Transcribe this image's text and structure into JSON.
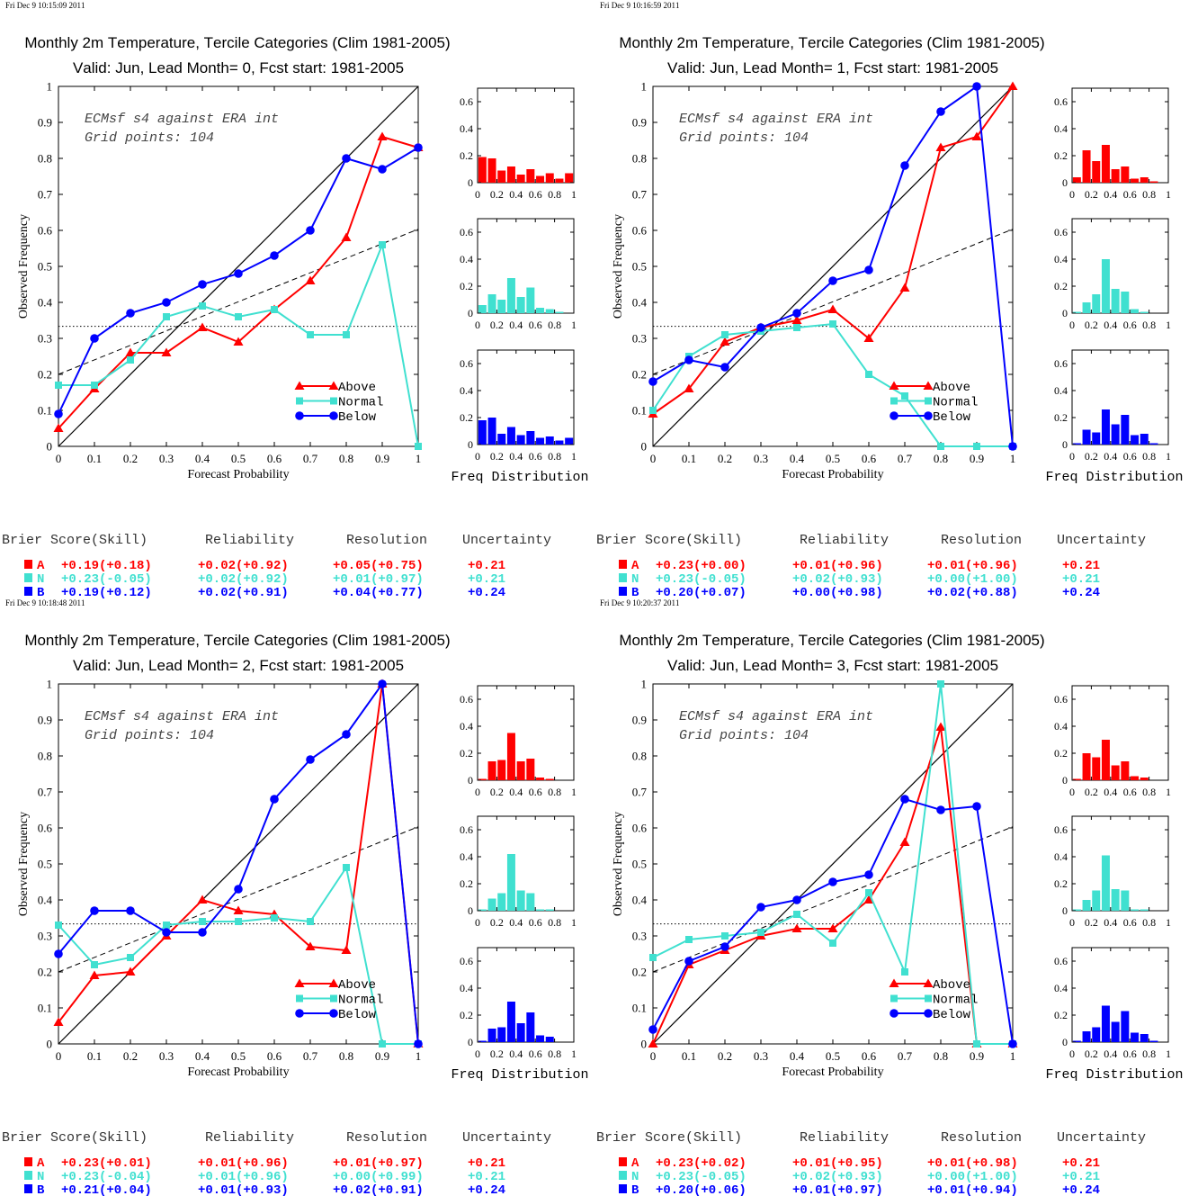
{
  "colors": {
    "above": "#ff0000",
    "normal": "#40e0d0",
    "below": "#0000ff",
    "axis": "#000000"
  },
  "common": {
    "title": "Monthly 2m Temperature, Tercile Categories (Clim 1981-2005)",
    "xlabel": "Forecast Probability",
    "ylabel": "Observed Frequency",
    "model_line1": "ECMsf s4 against ERA int",
    "model_line2": "Grid points:  104",
    "hist_label": "Freq Distribution",
    "legend": [
      "Above",
      "Normal",
      "Below"
    ],
    "x_ticks": [
      "0",
      "0.1",
      "0.2",
      "0.3",
      "0.4",
      "0.5",
      "0.6",
      "0.7",
      "0.8",
      "0.9",
      "1"
    ],
    "y_ticks": [
      "0",
      "0.1",
      "0.2",
      "0.3",
      "0.4",
      "0.5",
      "0.6",
      "0.7",
      "0.8",
      "0.9",
      "1"
    ],
    "hist_x_ticks": [
      "0",
      "0.2",
      "0.4",
      "0.6",
      "0.8",
      "1"
    ],
    "hist_y_ticks": [
      "0",
      "0.2",
      "0.4",
      "0.6"
    ],
    "score_headers": [
      "Brier Score(Skill)",
      "Reliability",
      "Resolution",
      "Uncertainty"
    ],
    "score_letters": [
      "A",
      "N",
      "B"
    ]
  },
  "chart_data": [
    {
      "type": "line",
      "timestamp": "Fri Dec  9 10:15:09 2011",
      "subtitle": "Valid: Jun, Lead Month= 0, Fcst start: 1981-2005",
      "xlim": [
        0,
        1
      ],
      "ylim": [
        0,
        1
      ],
      "series": [
        {
          "name": "Above",
          "x": [
            0,
            0.1,
            0.2,
            0.3,
            0.4,
            0.5,
            0.6,
            0.7,
            0.8,
            0.9,
            1
          ],
          "y": [
            0.05,
            0.16,
            0.26,
            0.26,
            0.33,
            0.29,
            0.38,
            0.46,
            0.58,
            0.86,
            0.83
          ]
        },
        {
          "name": "Normal",
          "x": [
            0,
            0.1,
            0.2,
            0.3,
            0.4,
            0.5,
            0.6,
            0.7,
            0.8,
            0.9,
            1
          ],
          "y": [
            0.17,
            0.17,
            0.24,
            0.36,
            0.39,
            0.36,
            0.38,
            0.31,
            0.31,
            0.56,
            0
          ]
        },
        {
          "name": "Below",
          "x": [
            0,
            0.1,
            0.2,
            0.3,
            0.4,
            0.5,
            0.6,
            0.7,
            0.8,
            0.9,
            1
          ],
          "y": [
            0.09,
            0.3,
            0.37,
            0.4,
            0.45,
            0.48,
            0.53,
            0.6,
            0.8,
            0.77,
            0.83
          ]
        }
      ],
      "hist": {
        "above": [
          0.19,
          0.18,
          0.09,
          0.12,
          0.06,
          0.1,
          0.05,
          0.07,
          0.03,
          0.07
        ],
        "normal": [
          0.06,
          0.14,
          0.1,
          0.26,
          0.12,
          0.19,
          0.04,
          0.03,
          0.01,
          0
        ],
        "below": [
          0.18,
          0.2,
          0.08,
          0.13,
          0.07,
          0.1,
          0.05,
          0.06,
          0.03,
          0.05
        ]
      },
      "scores": [
        [
          "+0.19(+0.18)",
          "+0.02(+0.92)",
          "+0.05(+0.75)",
          "+0.21"
        ],
        [
          "+0.23(-0.05)",
          "+0.02(+0.92)",
          "+0.01(+0.97)",
          "+0.21"
        ],
        [
          "+0.19(+0.12)",
          "+0.02(+0.91)",
          "+0.04(+0.77)",
          "+0.24"
        ]
      ]
    },
    {
      "type": "line",
      "timestamp": "Fri Dec  9 10:16:59 2011",
      "subtitle": "Valid: Jun, Lead Month= 1, Fcst start: 1981-2005",
      "xlim": [
        0,
        1
      ],
      "ylim": [
        0,
        1
      ],
      "series": [
        {
          "name": "Above",
          "x": [
            0,
            0.1,
            0.2,
            0.3,
            0.4,
            0.5,
            0.6,
            0.7,
            0.8,
            0.9,
            1
          ],
          "y": [
            0.09,
            0.16,
            0.29,
            0.33,
            0.35,
            0.38,
            0.3,
            0.44,
            0.83,
            0.86,
            1.0
          ]
        },
        {
          "name": "Normal",
          "x": [
            0,
            0.1,
            0.2,
            0.3,
            0.4,
            0.5,
            0.6,
            0.7,
            0.8,
            0.9,
            1
          ],
          "y": [
            0.1,
            0.25,
            0.31,
            0.32,
            0.33,
            0.34,
            0.2,
            0.14,
            0,
            0,
            0
          ]
        },
        {
          "name": "Below",
          "x": [
            0,
            0.1,
            0.2,
            0.3,
            0.4,
            0.5,
            0.6,
            0.7,
            0.8,
            0.9,
            1
          ],
          "y": [
            0.18,
            0.24,
            0.22,
            0.33,
            0.37,
            0.46,
            0.49,
            0.78,
            0.93,
            1.0,
            0
          ]
        }
      ],
      "hist": {
        "above": [
          0.04,
          0.24,
          0.16,
          0.28,
          0.1,
          0.12,
          0.03,
          0.04,
          0.01,
          0
        ],
        "normal": [
          0.01,
          0.08,
          0.14,
          0.4,
          0.18,
          0.16,
          0.03,
          0.01,
          0,
          0
        ],
        "below": [
          0.01,
          0.11,
          0.09,
          0.26,
          0.15,
          0.22,
          0.07,
          0.08,
          0.01,
          0
        ]
      },
      "scores": [
        [
          "+0.23(+0.00)",
          "+0.01(+0.96)",
          "+0.01(+0.96)",
          "+0.21"
        ],
        [
          "+0.23(-0.05)",
          "+0.02(+0.93)",
          "+0.00(+1.00)",
          "+0.21"
        ],
        [
          "+0.20(+0.07)",
          "+0.00(+0.98)",
          "+0.02(+0.88)",
          "+0.24"
        ]
      ]
    },
    {
      "type": "line",
      "timestamp": "Fri Dec  9 10:18:48 2011",
      "subtitle": "Valid: Jun, Lead Month= 2, Fcst start: 1981-2005",
      "xlim": [
        0,
        1
      ],
      "ylim": [
        0,
        1
      ],
      "series": [
        {
          "name": "Above",
          "x": [
            0,
            0.1,
            0.2,
            0.3,
            0.4,
            0.5,
            0.6,
            0.7,
            0.8,
            0.9,
            1
          ],
          "y": [
            0.06,
            0.19,
            0.2,
            0.3,
            0.4,
            0.37,
            0.36,
            0.27,
            0.26,
            1.0,
            0
          ]
        },
        {
          "name": "Normal",
          "x": [
            0,
            0.1,
            0.2,
            0.3,
            0.4,
            0.5,
            0.6,
            0.7,
            0.8,
            0.9,
            1
          ],
          "y": [
            0.33,
            0.22,
            0.24,
            0.33,
            0.34,
            0.34,
            0.35,
            0.34,
            0.49,
            0,
            0
          ]
        },
        {
          "name": "Below",
          "x": [
            0,
            0.1,
            0.2,
            0.3,
            0.4,
            0.5,
            0.6,
            0.7,
            0.8,
            0.9,
            1
          ],
          "y": [
            0.25,
            0.37,
            0.37,
            0.31,
            0.31,
            0.43,
            0.68,
            0.79,
            0.86,
            1.0,
            0
          ]
        }
      ],
      "hist": {
        "above": [
          0.01,
          0.14,
          0.15,
          0.35,
          0.14,
          0.16,
          0.02,
          0.01,
          0,
          0
        ],
        "normal": [
          0.01,
          0.09,
          0.13,
          0.42,
          0.15,
          0.13,
          0.01,
          0.01,
          0,
          0
        ],
        "below": [
          0.01,
          0.1,
          0.11,
          0.3,
          0.14,
          0.22,
          0.05,
          0.04,
          0,
          0
        ]
      },
      "scores": [
        [
          "+0.23(+0.01)",
          "+0.01(+0.96)",
          "+0.01(+0.97)",
          "+0.21"
        ],
        [
          "+0.23(-0.04)",
          "+0.01(+0.96)",
          "+0.00(+0.99)",
          "+0.21"
        ],
        [
          "+0.21(+0.04)",
          "+0.01(+0.93)",
          "+0.02(+0.91)",
          "+0.24"
        ]
      ]
    },
    {
      "type": "line",
      "timestamp": "Fri Dec  9 10:20:37 2011",
      "subtitle": "Valid: Jun, Lead Month= 3, Fcst start: 1981-2005",
      "xlim": [
        0,
        1
      ],
      "ylim": [
        0,
        1
      ],
      "series": [
        {
          "name": "Above",
          "x": [
            0,
            0.1,
            0.2,
            0.3,
            0.4,
            0.5,
            0.6,
            0.7,
            0.8,
            0.9,
            1
          ],
          "y": [
            0,
            0.22,
            0.26,
            0.3,
            0.32,
            0.32,
            0.4,
            0.56,
            0.88,
            0,
            0
          ]
        },
        {
          "name": "Normal",
          "x": [
            0,
            0.1,
            0.2,
            0.3,
            0.4,
            0.5,
            0.6,
            0.7,
            0.8,
            0.9,
            1
          ],
          "y": [
            0.24,
            0.29,
            0.3,
            0.31,
            0.36,
            0.28,
            0.42,
            0.2,
            1.0,
            0,
            0
          ]
        },
        {
          "name": "Below",
          "x": [
            0,
            0.1,
            0.2,
            0.3,
            0.4,
            0.5,
            0.6,
            0.7,
            0.8,
            0.9,
            1
          ],
          "y": [
            0.04,
            0.23,
            0.27,
            0.38,
            0.4,
            0.45,
            0.47,
            0.68,
            0.65,
            0.66,
            0
          ]
        }
      ],
      "hist": {
        "above": [
          0.01,
          0.2,
          0.17,
          0.3,
          0.11,
          0.14,
          0.03,
          0.02,
          0,
          0
        ],
        "normal": [
          0.01,
          0.08,
          0.15,
          0.41,
          0.16,
          0.15,
          0.01,
          0.01,
          0,
          0
        ],
        "below": [
          0.01,
          0.08,
          0.11,
          0.27,
          0.15,
          0.23,
          0.07,
          0.06,
          0.01,
          0
        ]
      },
      "scores": [
        [
          "+0.23(+0.02)",
          "+0.01(+0.95)",
          "+0.01(+0.98)",
          "+0.21"
        ],
        [
          "+0.23(-0.05)",
          "+0.02(+0.93)",
          "+0.00(+1.00)",
          "+0.21"
        ],
        [
          "+0.20(+0.06)",
          "+0.01(+0.97)",
          "+0.01(+0.94)",
          "+0.24"
        ]
      ]
    }
  ]
}
